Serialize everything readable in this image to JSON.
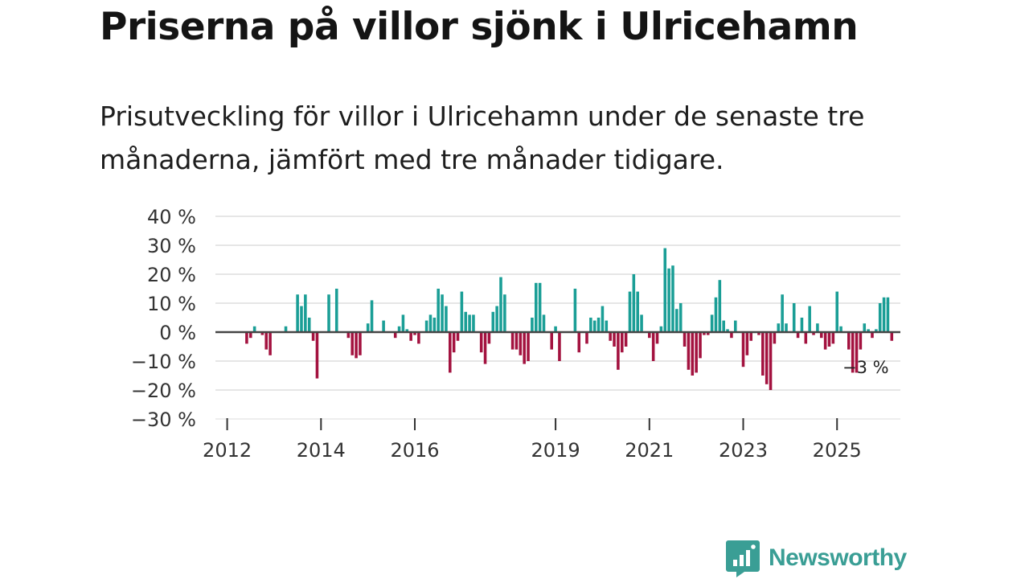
{
  "title": "Priserna på villor sjönk i Ulricehamn",
  "subtitle": "Prisutveckling för villor i Ulricehamn under de senaste tre månaderna, jämfört med tre månader tidigare.",
  "brand": {
    "name": "Newsworthy",
    "color": "#3a9e95"
  },
  "colors": {
    "positive": "#1a9e96",
    "negative": "#a3123f",
    "grid": "#dddddd",
    "zero": "#444444"
  },
  "chart_data": {
    "type": "bar",
    "title": "Priserna på villor sjönk i Ulricehamn",
    "xlabel": "",
    "ylabel": "",
    "y_unit": "%",
    "ylim": [
      -30,
      40
    ],
    "y_ticks": [
      {
        "value": 40,
        "label": "40 %"
      },
      {
        "value": 30,
        "label": "30 %"
      },
      {
        "value": 20,
        "label": "20 %"
      },
      {
        "value": 10,
        "label": "10 %"
      },
      {
        "value": 0,
        "label": "0 %"
      },
      {
        "value": -10,
        "label": "−10 %"
      },
      {
        "value": -20,
        "label": "−20 %"
      },
      {
        "value": -30,
        "label": "−30 %"
      }
    ],
    "x_ticks": [
      {
        "value": 2012.0,
        "label": "2012"
      },
      {
        "value": 2014.0,
        "label": "2014"
      },
      {
        "value": 2016.0,
        "label": "2016"
      },
      {
        "value": 2019.0,
        "label": "2019"
      },
      {
        "value": 2021.0,
        "label": "2021"
      },
      {
        "value": 2023.0,
        "label": "2023"
      },
      {
        "value": 2025.0,
        "label": "2025"
      }
    ],
    "x_range": [
      2011.75,
      2026.35
    ],
    "start": "2012-06",
    "series": [
      {
        "name": "Prisutveckling villor, Ulricehamn",
        "values": [
          -4,
          -2,
          2,
          0,
          -1,
          -6,
          -8,
          0,
          0,
          0,
          2,
          0,
          0,
          13,
          9,
          13,
          5,
          -3,
          -16,
          0,
          0,
          13,
          0,
          15,
          0,
          0,
          -2,
          -8,
          -9,
          -8,
          0,
          3,
          11,
          0,
          0,
          4,
          0,
          0,
          -2,
          2,
          6,
          1,
          -3,
          -1,
          -4,
          0,
          4,
          6,
          5,
          15,
          13,
          9,
          -14,
          -7,
          -3,
          14,
          7,
          6,
          6,
          0,
          -7,
          -11,
          -4,
          7,
          9,
          19,
          13,
          0,
          -6,
          -6,
          -8,
          -11,
          -10,
          5,
          17,
          17,
          6,
          0,
          -6,
          2,
          -10,
          0,
          0,
          0,
          15,
          -7,
          0,
          -4,
          5,
          4,
          5,
          9,
          4,
          -3,
          -5,
          -13,
          -7,
          -5,
          14,
          20,
          14,
          6,
          0,
          -2,
          -10,
          -4,
          2,
          29,
          22,
          23,
          8,
          10,
          -5,
          -13,
          -15,
          -14,
          -9,
          -1,
          -1,
          6,
          12,
          18,
          4,
          1,
          -2,
          4,
          0,
          -12,
          -8,
          -3,
          0,
          -1,
          -15,
          -18,
          -20,
          -4,
          3,
          13,
          3,
          0,
          10,
          -2,
          5,
          -4,
          9,
          -1,
          3,
          -2,
          -6,
          -5,
          -4,
          14,
          2,
          0,
          -6,
          -14,
          -14,
          -6,
          3,
          1,
          -2,
          1,
          10,
          12,
          12,
          -3
        ]
      }
    ],
    "end_label": "−3 %"
  }
}
